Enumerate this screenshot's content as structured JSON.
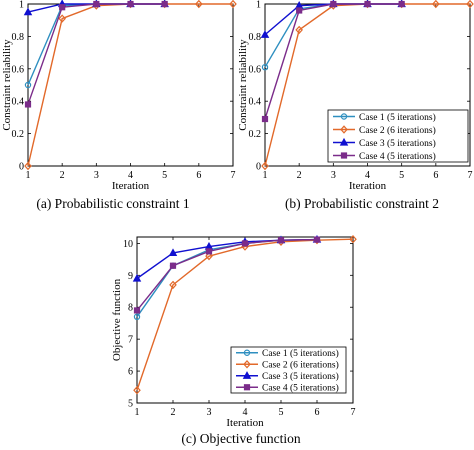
{
  "captions": {
    "a": "(a) Probabilistic constraint 1",
    "b": "(b) Probabilistic constraint 2",
    "c": "(c) Objective function"
  },
  "colors": {
    "case1": "#2e8fc0",
    "case2": "#e2692a",
    "case3": "#1010d0",
    "case4": "#7b2c8a"
  },
  "chart_data": [
    {
      "id": "a",
      "type": "line",
      "xlabel": "Iteration",
      "ylabel": "Constraint reliability",
      "xlim": [
        1,
        7
      ],
      "ylim": [
        0,
        1
      ],
      "xticks": [
        "1",
        "2",
        "3",
        "4",
        "5",
        "6",
        "7"
      ],
      "yticks": [
        "0",
        "0.2",
        "0.4",
        "0.6",
        "0.8",
        "1"
      ],
      "legend": "none",
      "series": [
        {
          "name": "Case 1 (5 iterations)",
          "marker": "circle",
          "color": "#2e8fc0",
          "x": [
            1,
            2,
            3,
            4,
            5
          ],
          "y": [
            0.5,
            0.99,
            1.0,
            1.0,
            1.0
          ]
        },
        {
          "name": "Case 2 (6 iterations)",
          "marker": "diamond",
          "color": "#e2692a",
          "x": [
            1,
            2,
            3,
            4,
            5,
            6,
            7
          ],
          "y": [
            0.0,
            0.91,
            0.99,
            1.0,
            1.0,
            1.0,
            1.0
          ]
        },
        {
          "name": "Case 3 (5 iterations)",
          "marker": "triangle",
          "color": "#1010d0",
          "x": [
            1,
            2,
            3,
            4,
            5
          ],
          "y": [
            0.95,
            1.0,
            1.0,
            1.0,
            1.0
          ]
        },
        {
          "name": "Case 4 (5 iterations)",
          "marker": "square",
          "color": "#7b2c8a",
          "x": [
            1,
            2,
            3,
            4,
            5
          ],
          "y": [
            0.38,
            0.98,
            1.0,
            1.0,
            1.0
          ]
        }
      ]
    },
    {
      "id": "b",
      "type": "line",
      "xlabel": "Iteration",
      "ylabel": "Constraint reliability",
      "xlim": [
        1,
        7
      ],
      "ylim": [
        0,
        1
      ],
      "xticks": [
        "1",
        "2",
        "3",
        "4",
        "5",
        "6",
        "7"
      ],
      "yticks": [
        "0",
        "0.2",
        "0.4",
        "0.6",
        "0.8",
        "1"
      ],
      "legend": "bottom-right",
      "series": [
        {
          "name": "Case 1 (5 iterations)",
          "marker": "circle",
          "color": "#2e8fc0",
          "x": [
            1,
            2,
            3,
            4,
            5
          ],
          "y": [
            0.61,
            0.97,
            1.0,
            1.0,
            1.0
          ]
        },
        {
          "name": "Case 2 (6 iterations)",
          "marker": "diamond",
          "color": "#e2692a",
          "x": [
            1,
            2,
            3,
            4,
            5,
            6,
            7
          ],
          "y": [
            0.0,
            0.84,
            0.99,
            1.0,
            1.0,
            1.0,
            1.0
          ]
        },
        {
          "name": "Case 3 (5 iterations)",
          "marker": "triangle",
          "color": "#1010d0",
          "x": [
            1,
            2,
            3,
            4,
            5
          ],
          "y": [
            0.81,
            0.99,
            1.0,
            1.0,
            1.0
          ]
        },
        {
          "name": "Case 4 (5 iterations)",
          "marker": "square",
          "color": "#7b2c8a",
          "x": [
            1,
            2,
            3,
            4,
            5
          ],
          "y": [
            0.29,
            0.96,
            1.0,
            1.0,
            1.0
          ]
        }
      ]
    },
    {
      "id": "c",
      "type": "line",
      "xlabel": "Iteration",
      "ylabel": "Objective function",
      "xlim": [
        1,
        7
      ],
      "ylim": [
        5,
        10.2
      ],
      "xticks": [
        "1",
        "2",
        "3",
        "4",
        "5",
        "6",
        "7"
      ],
      "yticks": [
        "5",
        "6",
        "7",
        "8",
        "9",
        "10"
      ],
      "legend": "bottom-right",
      "series": [
        {
          "name": "Case 1 (5 iterations)",
          "marker": "circle",
          "color": "#2e8fc0",
          "x": [
            1,
            2,
            3,
            4,
            5,
            6
          ],
          "y": [
            7.7,
            9.3,
            9.8,
            10.0,
            10.1,
            10.12
          ]
        },
        {
          "name": "Case 2 (6 iterations)",
          "marker": "diamond",
          "color": "#e2692a",
          "x": [
            1,
            2,
            3,
            4,
            5,
            6,
            7
          ],
          "y": [
            5.4,
            8.7,
            9.6,
            9.9,
            10.05,
            10.1,
            10.13
          ]
        },
        {
          "name": "Case 3 (5 iterations)",
          "marker": "triangle",
          "color": "#1010d0",
          "x": [
            1,
            2,
            3,
            4,
            5,
            6
          ],
          "y": [
            8.9,
            9.7,
            9.9,
            10.05,
            10.1,
            10.12
          ]
        },
        {
          "name": "Case 4 (5 iterations)",
          "marker": "square",
          "color": "#7b2c8a",
          "x": [
            1,
            2,
            3,
            4,
            5,
            6
          ],
          "y": [
            7.9,
            9.3,
            9.75,
            10.0,
            10.1,
            10.12
          ]
        }
      ]
    }
  ]
}
